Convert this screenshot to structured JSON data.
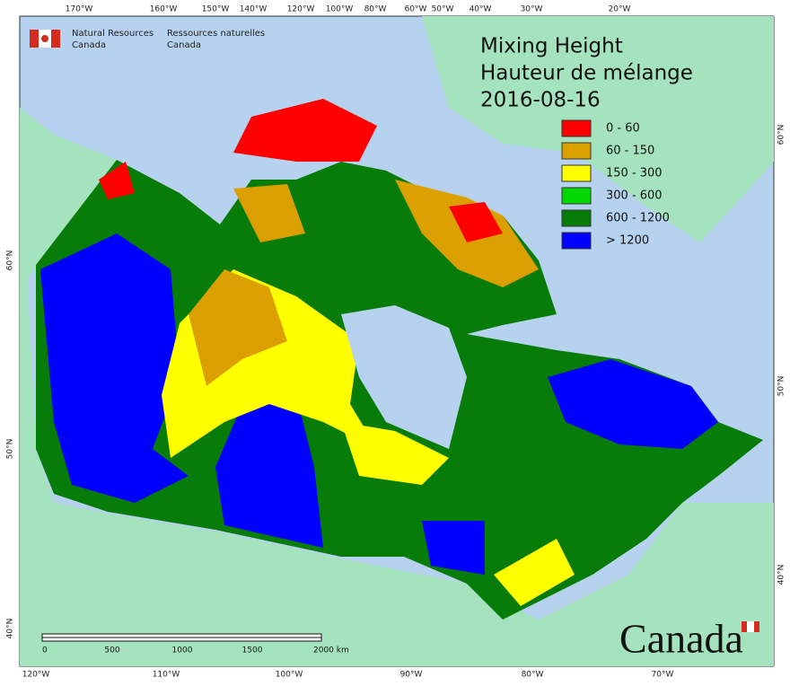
{
  "header": {
    "org_en": [
      "Natural Resources",
      "Canada"
    ],
    "org_fr": [
      "Ressources naturelles",
      "Canada"
    ]
  },
  "title": [
    "Mixing Height",
    "Hauteur de mélange",
    "2016-08-16"
  ],
  "legend": [
    {
      "label": "0 - 60",
      "color": "#ff0000"
    },
    {
      "label": "60 - 150",
      "color": "#dba000"
    },
    {
      "label": "150 - 300",
      "color": "#ffff00"
    },
    {
      "label": "300 - 600",
      "color": "#00d800"
    },
    {
      "label": "600 - 1200",
      "color": "#087c08"
    },
    {
      "label": "> 1200",
      "color": "#0000ff"
    }
  ],
  "top_longitudes": [
    "170°W",
    "160°W",
    "150°W",
    "140°W",
    "120°W",
    "100°W",
    "80°W",
    "60°W",
    "50°W",
    "40°W",
    "30°W",
    "20°W"
  ],
  "bottom_longitudes": [
    "120°W",
    "110°W",
    "100°W",
    "90°W",
    "80°W",
    "70°W"
  ],
  "left_latitudes": [
    "60°N",
    "50°N",
    "40°N"
  ],
  "right_latitudes": [
    "60°N",
    "50°N",
    "40°N"
  ],
  "scale_bar": [
    "0",
    "500",
    "1000",
    "1500",
    "2000  km"
  ],
  "wordmark": "Canada"
}
